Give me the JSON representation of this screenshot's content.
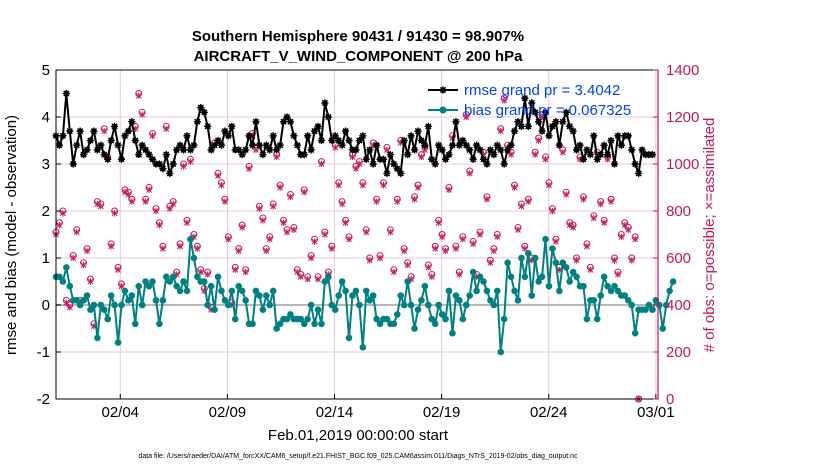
{
  "chart_data": {
    "type": "line",
    "title": "Southern Hemisphere 90431 / 91430 = 98.907%",
    "subtitle": "AIRCRAFT_V_WIND_COMPONENT @ 200 hPa",
    "xlabel": "Feb.01,2019 00:00:00 start",
    "ylabel": "rmse and bias (model - observation)",
    "y2label": "# of obs: o=possible; ×=assimilated",
    "footer": "data file: /Users/raeder/DAI/ATM_forcXX/CAM6_setup/f.e21.FHIST_BGC.f09_025.CAM6assim.011/Diags_NTrS_2019-02/obs_diag_output.nc",
    "xlim": [
      1,
      29.1
    ],
    "ylim": [
      -2,
      5
    ],
    "y2lim": [
      0,
      1400
    ],
    "x_ticks": [
      {
        "label": "02/04",
        "value": 4
      },
      {
        "label": "02/09",
        "value": 9
      },
      {
        "label": "02/14",
        "value": 14
      },
      {
        "label": "02/19",
        "value": 19
      },
      {
        "label": "02/24",
        "value": 24
      },
      {
        "label": "03/01",
        "value": 29
      }
    ],
    "y_ticks": [
      "-2",
      "-1",
      "0",
      "1",
      "2",
      "3",
      "4",
      "5"
    ],
    "y2_ticks": [
      "0",
      "200",
      "400",
      "600",
      "800",
      "1000",
      "1200",
      "1400"
    ],
    "colors": {
      "rmse": "#000000",
      "bias": "#008080",
      "obs": "#c2185b",
      "zero_line": "#b8b8b8",
      "grid": "#e6c8d6",
      "legend_text": "#0044ee"
    },
    "series": [
      {
        "name": "rmse grand pr = 3.4042",
        "marker": "asterisk",
        "values": [
          3.6,
          3.4,
          3.6,
          4.5,
          3.7,
          3.0,
          3.4,
          3.7,
          3.2,
          3.3,
          3.5,
          3.7,
          3.3,
          3.4,
          3.2,
          3.1,
          3.5,
          3.8,
          3.4,
          3.1,
          3.6,
          3.7,
          3.9,
          3.5,
          3.2,
          3.4,
          3.3,
          3.2,
          3.1,
          3.0,
          3.0,
          2.9,
          3.2,
          2.8,
          3.0,
          3.3,
          3.4,
          3.3,
          3.6,
          3.3,
          3.4,
          3.9,
          4.2,
          4.1,
          3.8,
          3.3,
          3.4,
          3.5,
          3.4,
          3.7,
          3.6,
          3.8,
          3.3,
          3.3,
          3.2,
          3.3,
          3.6,
          3.4,
          3.9,
          3.4,
          3.2,
          3.4,
          3.3,
          3.6,
          3.3,
          3.4,
          3.9,
          4.0,
          3.9,
          3.6,
          3.4,
          3.2,
          3.2,
          3.6,
          3.3,
          3.7,
          3.8,
          3.5,
          4.3,
          4.0,
          3.5,
          3.6,
          3.5,
          3.4,
          3.7,
          3.5,
          3.3,
          3.3,
          3.5,
          3.6,
          3.1,
          3.3,
          3.0,
          3.4,
          3.1,
          3.1,
          2.8,
          3.2,
          3.0,
          2.9,
          2.8,
          3.5,
          3.2,
          3.6,
          3.3,
          3.7,
          3.5,
          3.4,
          3.8,
          3.1,
          3.0,
          3.4,
          3.3,
          3.1,
          3.2,
          3.4,
          3.9,
          3.4,
          3.5,
          3.4,
          3.3,
          3.1,
          3.4,
          3.3,
          3.1,
          3.0,
          3.3,
          3.2,
          3.4,
          3.3,
          3.0,
          3.3,
          3.4,
          3.7,
          3.9,
          3.8,
          4.4,
          3.8,
          4.3,
          4.1,
          3.9,
          3.7,
          4.1,
          3.6,
          3.8,
          3.9,
          3.4,
          3.9,
          4.1,
          3.8,
          3.7,
          3.3,
          3.4,
          3.1,
          3.3,
          3.2,
          3.6,
          3.1,
          3.2,
          3.4,
          3.2,
          3.5,
          3.0,
          3.6,
          3.4,
          3.6,
          3.6,
          3.3,
          3.0,
          2.8,
          3.3,
          3.2,
          3.2,
          3.2
        ]
      },
      {
        "name": "bias grand pr = 0.067325",
        "marker": "circle",
        "values": [
          0.6,
          0.6,
          0.5,
          0.8,
          0.4,
          0.1,
          0.1,
          0.0,
          0.1,
          0.2,
          -0.1,
          0.0,
          -0.7,
          0.0,
          -0.1,
          -0.3,
          0.2,
          0.0,
          -0.8,
          0.0,
          0.3,
          0.1,
          0.2,
          -0.4,
          0.4,
          0.0,
          0.5,
          0.4,
          0.5,
          0.1,
          -0.4,
          0.1,
          0.6,
          0.5,
          0.6,
          0.4,
          0.3,
          0.5,
          0.3,
          1.4,
          1.0,
          0.6,
          0.5,
          0.5,
          0.0,
          0.4,
          -0.1,
          0.6,
          0.3,
          0.1,
          0.0,
          0.3,
          -0.3,
          0.4,
          0.3,
          0.1,
          -0.4,
          -0.4,
          0.3,
          0.2,
          -0.1,
          0.2,
          0.0,
          0.3,
          -0.5,
          -0.4,
          -0.3,
          -0.3,
          -0.2,
          -0.3,
          -0.3,
          -0.3,
          -0.4,
          -0.3,
          0.0,
          -0.4,
          -0.1,
          -0.4,
          0.5,
          0.6,
          0.0,
          -0.1,
          0.2,
          0.5,
          0.3,
          -0.7,
          0.2,
          0.3,
          0.0,
          -0.9,
          0.3,
          0.1,
          0.2,
          -0.3,
          -0.4,
          -0.3,
          -0.3,
          -0.4,
          -0.4,
          -0.2,
          0.2,
          0.0,
          0.5,
          0.0,
          -0.5,
          -0.1,
          0.1,
          0.4,
          0.0,
          -0.3,
          -0.4,
          0.0,
          -0.2,
          -0.3,
          0.3,
          -0.6,
          0.2,
          0.1,
          -0.3,
          0.0,
          0.2,
          0.7,
          0.3,
          0.6,
          0.5,
          0.3,
          0.1,
          0.0,
          0.3,
          -1.0,
          -0.3,
          0.9,
          0.6,
          0.3,
          0.1,
          1.0,
          0.6,
          1.1,
          0.2,
          1.0,
          0.5,
          0.6,
          1.4,
          0.4,
          1.2,
          0.9,
          0.3,
          0.9,
          0.8,
          0.5,
          0.7,
          0.6,
          0.4,
          0.4,
          -0.3,
          0.1,
          0.1,
          -0.3,
          0.2,
          0.6,
          0.4,
          0.3,
          0.4,
          0.3,
          0.2,
          0.2,
          0.1,
          0.0,
          -0.6,
          -0.1,
          -0.1,
          -0.1,
          0.0,
          -0.1,
          0.1,
          0.0,
          -0.5,
          0.0,
          0.3,
          0.5
        ]
      }
    ],
    "obs_possible": [
      710,
      750,
      800,
      420,
      400,
      610,
      720,
      420,
      580,
      640,
      510,
      320,
      840,
      830,
      1150,
      1030,
      660,
      800,
      560,
      490,
      890,
      880,
      850,
      1160,
      1300,
      1220,
      850,
      900,
      1130,
      810,
      750,
      650,
      1160,
      820,
      840,
      540,
      660,
      1000,
      760,
      1020,
      700,
      650,
      550,
      470,
      540,
      390,
      1090,
      960,
      920,
      850,
      690,
      410,
      560,
      640,
      740,
      550,
      990,
      1130,
      1070,
      820,
      770,
      640,
      690,
      830,
      1040,
      910,
      760,
      720,
      870,
      730,
      550,
      530,
      890,
      520,
      610,
      680,
      520,
      1010,
      710,
      540,
      650,
      1080,
      920,
      840,
      760,
      690,
      1040,
      990,
      1010,
      920,
      720,
      600,
      1090,
      850,
      610,
      920,
      1070,
      720,
      550,
      850,
      1100,
      640,
      580,
      520,
      860,
      910,
      1040,
      1070,
      570,
      530,
      650,
      760,
      700,
      640,
      900,
      1120,
      650,
      540,
      690,
      1210,
      970,
      670,
      530,
      710,
      1050,
      860,
      590,
      640,
      700,
      1150,
      1280,
      1080,
      1050,
      910,
      730,
      830,
      650,
      850,
      600,
      1050,
      1110,
      1210,
      1030,
      920,
      810,
      680,
      560,
      1060,
      880,
      750,
      740,
      600,
      1030,
      860,
      660,
      560,
      780,
      1050,
      840,
      760,
      1030,
      850,
      600,
      540,
      700,
      750,
      730,
      600,
      690,
      0
    ],
    "obs_assimilated": [
      700,
      740,
      790,
      410,
      390,
      600,
      710,
      410,
      570,
      630,
      500,
      310,
      830,
      820,
      1140,
      1020,
      650,
      790,
      550,
      480,
      880,
      870,
      840,
      1150,
      1290,
      1210,
      840,
      890,
      1120,
      800,
      740,
      640,
      1150,
      810,
      830,
      530,
      650,
      990,
      750,
      1010,
      690,
      640,
      540,
      460,
      530,
      380,
      1080,
      950,
      910,
      840,
      680,
      400,
      550,
      630,
      730,
      540,
      980,
      1120,
      1060,
      810,
      760,
      630,
      680,
      820,
      1030,
      900,
      750,
      710,
      860,
      720,
      540,
      520,
      880,
      510,
      600,
      670,
      510,
      1000,
      700,
      530,
      640,
      1070,
      910,
      830,
      750,
      680,
      1030,
      980,
      1000,
      910,
      710,
      590,
      1080,
      840,
      600,
      910,
      1060,
      710,
      540,
      840,
      1090,
      630,
      570,
      510,
      850,
      900,
      1030,
      1060,
      560,
      520,
      640,
      750,
      690,
      630,
      890,
      1110,
      640,
      530,
      680,
      1200,
      960,
      660,
      520,
      700,
      1040,
      850,
      580,
      630,
      690,
      1140,
      1270,
      1070,
      1040,
      900,
      720,
      820,
      640,
      840,
      590,
      1040,
      1100,
      1200,
      1020,
      910,
      800,
      670,
      550,
      1050,
      870,
      740,
      730,
      590,
      1020,
      850,
      650,
      550,
      770,
      1040,
      830,
      750,
      1020,
      840,
      590,
      530,
      690,
      740,
      720,
      590,
      680,
      0
    ]
  }
}
